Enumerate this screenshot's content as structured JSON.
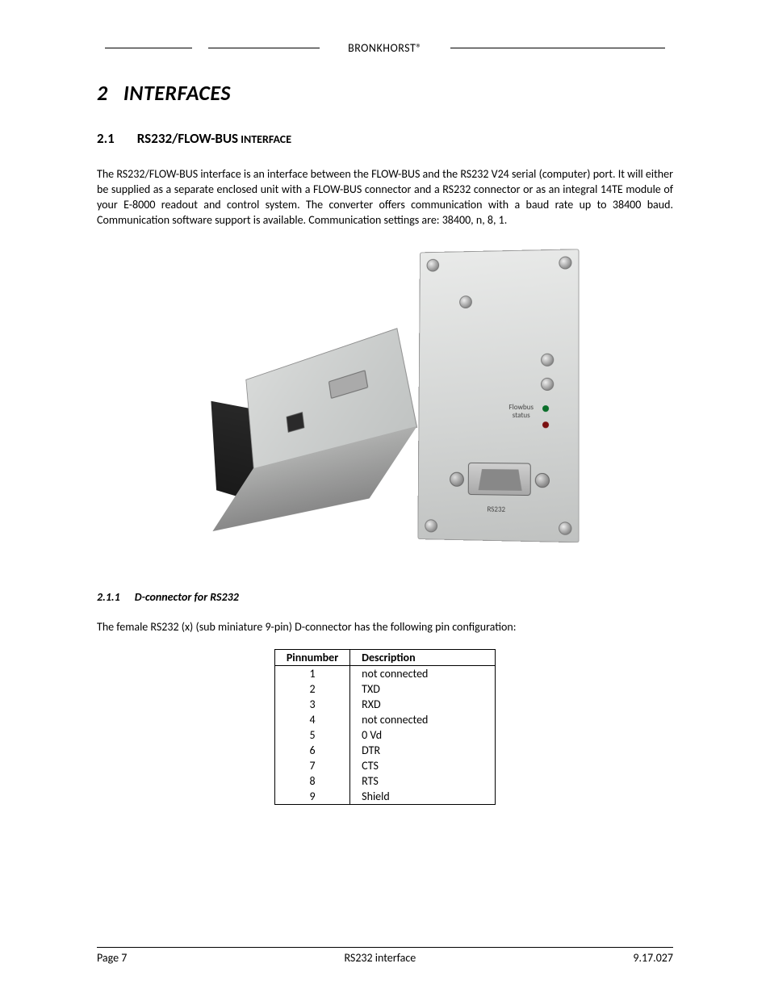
{
  "header": {
    "brand": "BRONKHORST®"
  },
  "h1": {
    "num": "2",
    "title": "INTERFACES"
  },
  "h2": {
    "num": "2.1",
    "title_main": "RS232/FLOW-BUS",
    "title_suffix": " INTERFACE"
  },
  "paragraph1": "The RS232/FLOW-BUS interface is an interface between the FLOW-BUS and the RS232 V24 serial (computer) port. It will either be supplied as a separate enclosed unit with a FLOW-BUS connector and a RS232 connector or as an integral 14TE module of your E-8000 readout and control system. The converter offers communication with a baud rate up to 38400 baud. Communication software support is available. Communication settings are: 38400, n, 8, 1.",
  "figure": {
    "panel_label_line1": "Flowbus",
    "panel_label_line2": "status",
    "panel_port_label": "RS232"
  },
  "h3": {
    "num": "2.1.1",
    "title": "D-connector for RS232"
  },
  "paragraph2": "The female RS232 (x) (sub miniature 9-pin) D-connector has the following pin configuration:",
  "table": {
    "columns": [
      "Pinnumber",
      "Description"
    ],
    "rows": [
      [
        "1",
        "not connected"
      ],
      [
        "2",
        "TXD"
      ],
      [
        "3",
        "RXD"
      ],
      [
        "4",
        "not connected"
      ],
      [
        "5",
        "0 Vd"
      ],
      [
        "6",
        "DTR"
      ],
      [
        "7",
        "CTS"
      ],
      [
        "8",
        "RTS"
      ],
      [
        "9",
        "Shield"
      ]
    ],
    "col_align": [
      "center",
      "left"
    ]
  },
  "footer": {
    "left": "Page 7",
    "center": "RS232 interface",
    "right": "9.17.027"
  },
  "colors": {
    "text": "#000000",
    "background": "#ffffff",
    "device_light": "#d8dad9",
    "device_dark": "#1a1a1a",
    "panel_bg": "#e0e1e0",
    "led_green": "#0a6e2a",
    "led_red": "#7a1010"
  },
  "typography": {
    "body_fontsize_pt": 11,
    "h1_fontsize_pt": 20,
    "h2_fontsize_pt": 13,
    "h3_fontsize_pt": 11,
    "font_family": "Calibri"
  }
}
